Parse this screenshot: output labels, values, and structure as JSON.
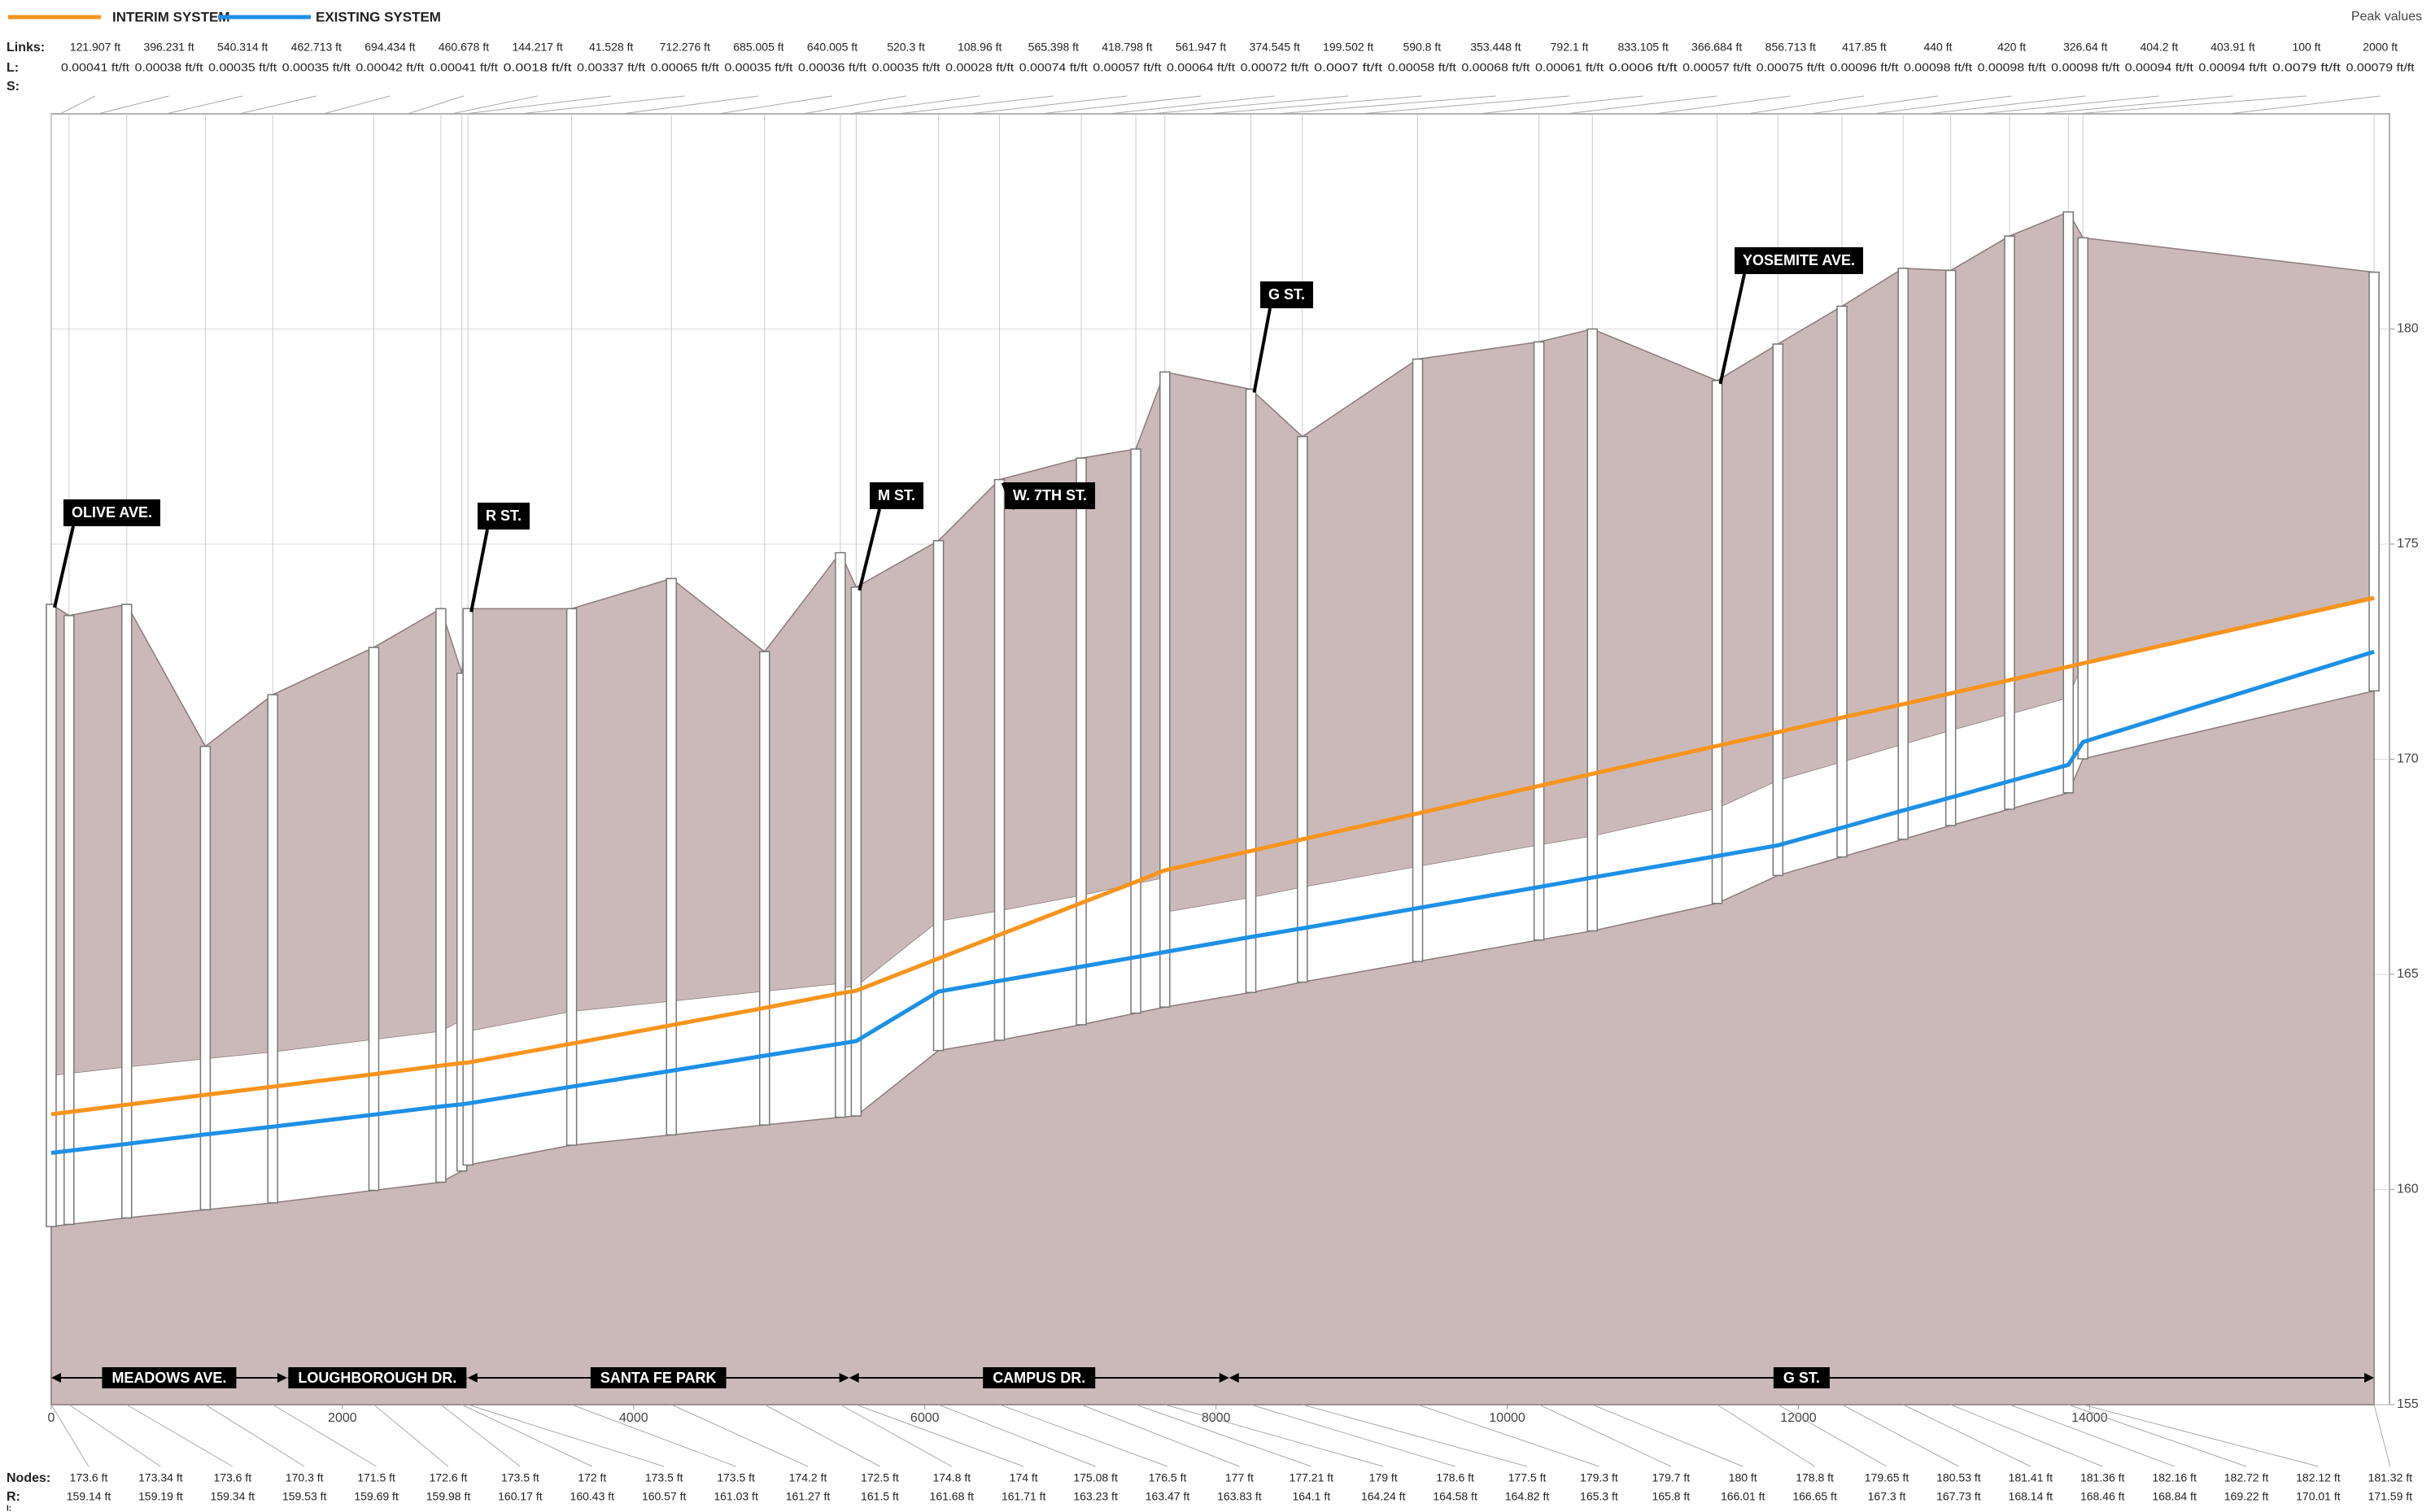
{
  "chart_data": {
    "type": "line",
    "peak_label": "Peak values",
    "series": [
      {
        "name": "INTERIM SYSTEM",
        "color": "#f7941d",
        "values": [
          161.75,
          161.8,
          161.97,
          162.2,
          162.39,
          162.68,
          162.88,
          162.94,
          162.95,
          163.39,
          163.82,
          164.22,
          164.56,
          164.62,
          165.37,
          165.92,
          166.66,
          167.15,
          167.42,
          167.87,
          168.14,
          168.74,
          169.38,
          169.66,
          170.31,
          170.63,
          170.97,
          171.28,
          171.53,
          171.84,
          172.15,
          172.23,
          173.75
        ]
      },
      {
        "name": "EXISTING SYSTEM",
        "color": "#1e90e6",
        "values": [
          160.85,
          160.9,
          161.06,
          161.28,
          161.46,
          161.74,
          161.93,
          161.98,
          162.0,
          162.39,
          162.76,
          163.11,
          163.39,
          163.45,
          164.6,
          164.85,
          165.18,
          165.4,
          165.52,
          165.87,
          166.07,
          166.54,
          167.03,
          167.25,
          167.75,
          168.0,
          168.41,
          168.81,
          169.11,
          169.49,
          169.87,
          170.4,
          172.5
        ]
      }
    ],
    "xlim": [
      0,
      16060
    ],
    "xticks": [
      0,
      2000,
      4000,
      6000,
      8000,
      10000,
      12000,
      14000
    ],
    "ylim": [
      155,
      185
    ],
    "yticks": [
      155,
      160,
      165,
      170,
      175,
      180
    ],
    "grid": true,
    "links": {
      "label": "Links:",
      "slope_label": "L:",
      "extra_label": "S:",
      "lengths": [
        121.907,
        396.231,
        540.314,
        462.713,
        694.434,
        460.678,
        144.217,
        41.528,
        712.276,
        685.005,
        640.005,
        520.3,
        108.96,
        565.398,
        418.798,
        561.947,
        374.545,
        199.502,
        590.8,
        353.448,
        792.1,
        833.105,
        366.684,
        856.713,
        417.85,
        440,
        420,
        326.64,
        404.2,
        403.91,
        100,
        2000
      ],
      "length_labels": [
        "121.907 ft",
        "396.231 ft",
        "540.314 ft",
        "462.713 ft",
        "694.434 ft",
        "460.678 ft",
        "144.217 ft",
        "41.528 ft",
        "712.276 ft",
        "685.005 ft",
        "640.005 ft",
        "520.3 ft",
        "108.96 ft",
        "565.398 ft",
        "418.798 ft",
        "561.947 ft",
        "374.545 ft",
        "199.502 ft",
        "590.8 ft",
        "353.448 ft",
        "792.1 ft",
        "833.105 ft",
        "366.684 ft",
        "856.713 ft",
        "417.85 ft",
        "440 ft",
        "420 ft",
        "326.64 ft",
        "404.2 ft",
        "403.91 ft",
        "100 ft",
        "2000 ft"
      ],
      "slopes": [
        0.00041,
        0.00038,
        0.00035,
        0.00035,
        0.00042,
        0.00041,
        0.0018,
        0.00337,
        0.00065,
        0.00035,
        0.00036,
        0.00035,
        0.00028,
        0.00074,
        0.00057,
        0.00064,
        0.00072,
        0.0007,
        0.00058,
        0.00068,
        0.00061,
        0.0006,
        0.00057,
        0.00075,
        0.00096,
        0.00098,
        0.00098,
        0.00098,
        0.00094,
        0.00094,
        0.0079,
        0.00079
      ],
      "slope_labels": [
        "0.00041 ft/ft",
        "0.00038 ft/ft",
        "0.00035 ft/ft",
        "0.00035 ft/ft",
        "0.00042 ft/ft",
        "0.00041 ft/ft",
        "0.0018 ft/ft",
        "0.00337 ft/ft",
        "0.00065 ft/ft",
        "0.00035 ft/ft",
        "0.00036 ft/ft",
        "0.00035 ft/ft",
        "0.00028 ft/ft",
        "0.00074 ft/ft",
        "0.00057 ft/ft",
        "0.00064 ft/ft",
        "0.00072 ft/ft",
        "0.0007 ft/ft",
        "0.00058 ft/ft",
        "0.00068 ft/ft",
        "0.00061 ft/ft",
        "0.0006 ft/ft",
        "0.00057 ft/ft",
        "0.00075 ft/ft",
        "0.00096 ft/ft",
        "0.00098 ft/ft",
        "0.00098 ft/ft",
        "0.00098 ft/ft",
        "0.00094 ft/ft",
        "0.00094 ft/ft",
        "0.0079 ft/ft",
        "0.00079 ft/ft"
      ],
      "diameters": [
        3.5,
        3.5,
        3.5,
        3.5,
        3.5,
        3.5,
        3.5,
        3.5,
        3.1,
        3.1,
        3.1,
        3.1,
        3.0,
        3.0,
        3.0,
        3.0,
        3.0,
        3.0,
        2.2,
        2.2,
        2.2,
        2.2,
        2.2,
        2.2,
        2.2,
        2.2,
        2.2,
        2.2,
        2.2,
        2.2,
        2.2,
        2.2
      ]
    },
    "nodes": {
      "label": "Nodes:",
      "invert_label": "R:",
      "extra_label": "I:",
      "ground": [
        173.6,
        173.34,
        173.6,
        170.3,
        171.5,
        172.6,
        173.5,
        172,
        173.5,
        173.5,
        174.2,
        172.5,
        174.8,
        174,
        175.08,
        176.5,
        177,
        177.21,
        179,
        178.6,
        177.5,
        179.3,
        179.7,
        180,
        178.8,
        179.65,
        180.53,
        181.41,
        181.36,
        182.16,
        182.72,
        182.12,
        181.32
      ],
      "ground_labels": [
        "173.6 ft",
        "173.34 ft",
        "173.6 ft",
        "170.3 ft",
        "171.5 ft",
        "172.6 ft",
        "173.5 ft",
        "172 ft",
        "173.5 ft",
        "173.5 ft",
        "174.2 ft",
        "172.5 ft",
        "174.8 ft",
        "174 ft",
        "175.08 ft",
        "176.5 ft",
        "177 ft",
        "177.21 ft",
        "179 ft",
        "178.6 ft",
        "177.5 ft",
        "179.3 ft",
        "179.7 ft",
        "180 ft",
        "178.8 ft",
        "179.65 ft",
        "180.53 ft",
        "181.41 ft",
        "181.36 ft",
        "182.16 ft",
        "182.72 ft",
        "182.12 ft",
        "181.32 ft"
      ],
      "invert": [
        159.14,
        159.19,
        159.34,
        159.53,
        159.69,
        159.98,
        160.17,
        160.43,
        160.57,
        161.03,
        161.27,
        161.5,
        161.68,
        161.71,
        163.23,
        163.47,
        163.83,
        164.1,
        164.24,
        164.58,
        164.82,
        165.3,
        165.8,
        166.01,
        166.65,
        167.3,
        167.73,
        168.14,
        168.46,
        168.84,
        169.22,
        170.01,
        171.59
      ],
      "invert_labels": [
        "159.14 ft",
        "159.19 ft",
        "159.34 ft",
        "159.53 ft",
        "159.69 ft",
        "159.98 ft",
        "160.17 ft",
        "160.43 ft",
        "160.57 ft",
        "161.03 ft",
        "161.27 ft",
        "161.5 ft",
        "161.68 ft",
        "161.71 ft",
        "163.23 ft",
        "163.47 ft",
        "163.83 ft",
        "164.1 ft",
        "164.24 ft",
        "164.58 ft",
        "164.82 ft",
        "165.3 ft",
        "165.8 ft",
        "166.01 ft",
        "166.65 ft",
        "167.3 ft",
        "167.73 ft",
        "168.14 ft",
        "168.46 ft",
        "168.84 ft",
        "169.22 ft",
        "170.01 ft",
        "171.59 ft"
      ]
    },
    "streets": [
      {
        "name": "MEADOWS AVE.",
        "from": 0,
        "to": 1620
      },
      {
        "name": "LOUGHBOROUGH DR.",
        "from": 1620,
        "to": 2860
      },
      {
        "name": "SANTA FE PARK",
        "from": 2860,
        "to": 5480
      },
      {
        "name": "CAMPUS DR.",
        "from": 5480,
        "to": 8090
      },
      {
        "name": "G ST.",
        "from": 8090,
        "to": 15954
      }
    ],
    "annotations": [
      "OLIVE AVE.",
      "R ST.",
      "M ST.",
      "W. 7TH ST.",
      "G ST.",
      "YOSEMITE AVE."
    ]
  }
}
